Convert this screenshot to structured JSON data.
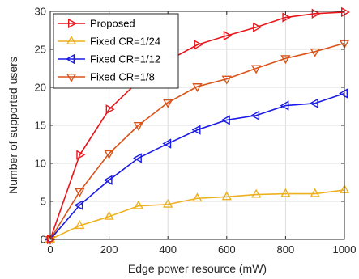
{
  "chart_data": {
    "type": "line",
    "title": "",
    "xlabel": "Edge power resource (mW)",
    "ylabel": "Number of supported users",
    "xlim": [
      0,
      1000
    ],
    "ylim": [
      0,
      30
    ],
    "x_ticks": [
      0,
      200,
      400,
      600,
      800,
      1000
    ],
    "y_ticks": [
      0,
      5,
      10,
      15,
      20,
      25,
      30
    ],
    "grid": true,
    "legend_position": "top-left",
    "x": [
      0,
      100,
      200,
      300,
      400,
      500,
      600,
      700,
      800,
      900,
      1000
    ],
    "series": [
      {
        "name": "Proposed",
        "color": "#e8161b",
        "marker": "triangle-right",
        "values": [
          0,
          11.1,
          17.1,
          20.8,
          23.5,
          25.6,
          26.8,
          27.9,
          29.2,
          29.7,
          29.9
        ]
      },
      {
        "name": "Fixed CR=1/24",
        "color": "#edb120",
        "marker": "triangle-up",
        "values": [
          0,
          1.8,
          3.0,
          4.4,
          4.6,
          5.4,
          5.6,
          5.9,
          6.0,
          6.0,
          6.5
        ]
      },
      {
        "name": "Fixed CR=1/12",
        "color": "#1a1ae6",
        "marker": "triangle-left",
        "values": [
          0,
          4.5,
          7.8,
          10.7,
          12.6,
          14.4,
          15.7,
          16.3,
          17.6,
          17.9,
          19.2
        ]
      },
      {
        "name": "Fixed CR=1/8",
        "color": "#d95319",
        "marker": "triangle-down",
        "values": [
          0,
          6.3,
          11.3,
          15.0,
          18.0,
          20.1,
          21.1,
          22.5,
          23.8,
          24.7,
          25.8
        ]
      }
    ]
  }
}
